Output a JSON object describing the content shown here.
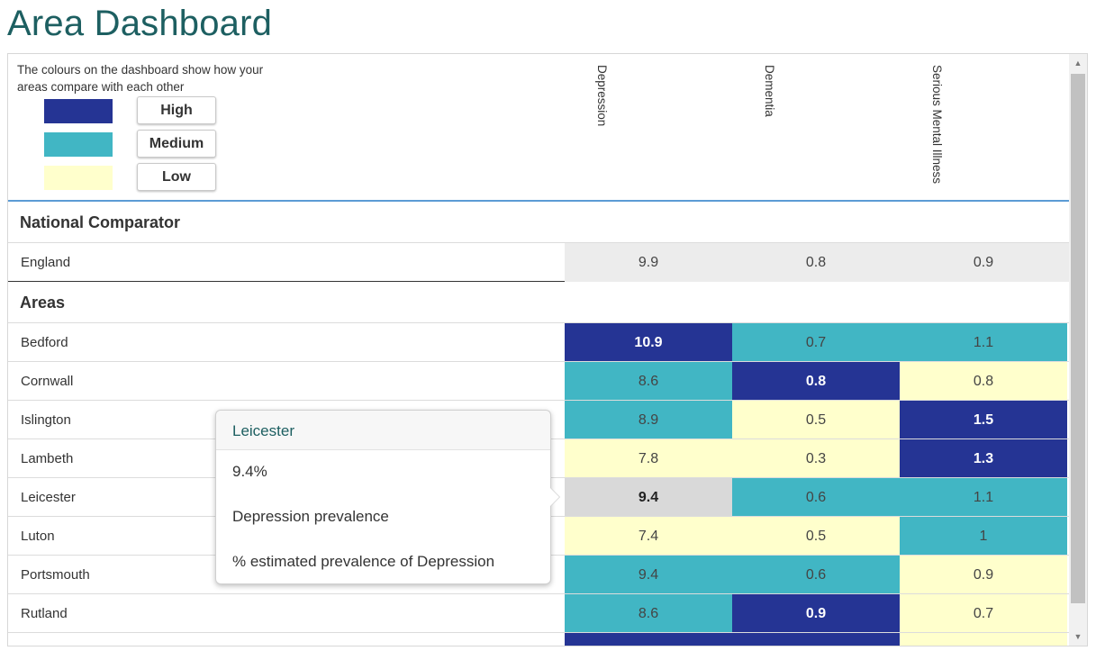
{
  "page": {
    "title": "Area Dashboard"
  },
  "legend": {
    "intro": "The colours on the dashboard show how your areas compare with each other",
    "items": [
      {
        "label": "High",
        "color": "#253494"
      },
      {
        "label": "Medium",
        "color": "#41b6c4"
      },
      {
        "label": "Low",
        "color": "#ffffcc"
      }
    ]
  },
  "columns": [
    "Depression",
    "Dementia",
    "Serious Mental Illness"
  ],
  "national": {
    "title": "National Comparator",
    "row": {
      "name": "England",
      "values": [
        "9.9",
        "0.8",
        "0.9"
      ]
    }
  },
  "areas": {
    "title": "Areas",
    "rows": [
      {
        "name": "Bedford",
        "values": [
          "10.9",
          "0.7",
          "1.1"
        ],
        "levels": [
          "high",
          "medium",
          "medium"
        ]
      },
      {
        "name": "Cornwall",
        "values": [
          "8.6",
          "0.8",
          "0.8"
        ],
        "levels": [
          "medium",
          "high",
          "low"
        ]
      },
      {
        "name": "Islington",
        "values": [
          "8.9",
          "0.5",
          "1.5"
        ],
        "levels": [
          "medium",
          "low",
          "high"
        ]
      },
      {
        "name": "Lambeth",
        "values": [
          "7.8",
          "0.3",
          "1.3"
        ],
        "levels": [
          "low",
          "low",
          "high"
        ]
      },
      {
        "name": "Leicester",
        "values": [
          "9.4",
          "0.6",
          "1.1"
        ],
        "levels": [
          "selected",
          "medium",
          "medium"
        ]
      },
      {
        "name": "Luton",
        "values": [
          "7.4",
          "0.5",
          "1"
        ],
        "levels": [
          "low",
          "low",
          "medium"
        ]
      },
      {
        "name": "Portsmouth",
        "values": [
          "9.4",
          "0.6",
          "0.9"
        ],
        "levels": [
          "medium",
          "medium",
          "low"
        ]
      },
      {
        "name": "Rutland",
        "values": [
          "8.6",
          "0.9",
          "0.7"
        ],
        "levels": [
          "medium",
          "high",
          "low"
        ]
      }
    ],
    "partial_row_levels": [
      "high",
      "high",
      "low"
    ]
  },
  "tooltip": {
    "area": "Leicester",
    "value": "9.4%",
    "indicator": "Depression prevalence",
    "description": "% estimated prevalence of Depression"
  }
}
